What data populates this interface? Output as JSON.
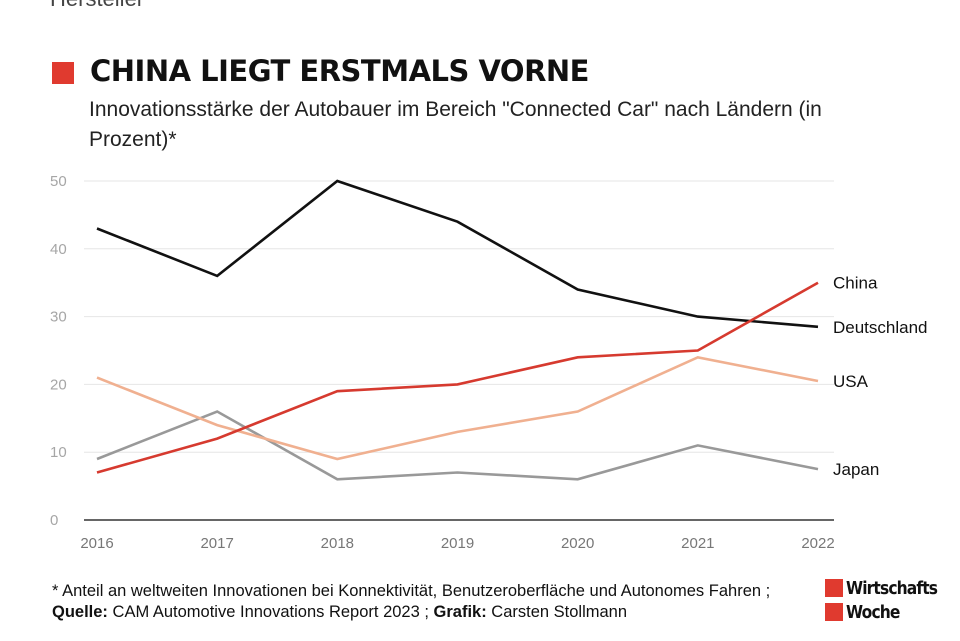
{
  "header": {
    "cropped_text": "Hersteller",
    "title": "CHINA LIEGT ERSTMALS VORNE",
    "subtitle": "Innovationsstärke der Autobauer im Bereich \"Connected Car\" nach Ländern (in Prozent)*"
  },
  "colors": {
    "accent": "#e03a2f",
    "deutschland": "#111111",
    "china": "#d63a2f",
    "usa": "#f0b090",
    "japan": "#999999",
    "grid": "#e6e6e6",
    "axis": "#333333"
  },
  "chart_data": {
    "type": "line",
    "title": "CHINA LIEGT ERSTMALS VORNE",
    "subtitle": "Innovationsstärke der Autobauer im Bereich \"Connected Car\" nach Ländern (in Prozent)*",
    "xlabel": "",
    "ylabel": "",
    "x": [
      "2016",
      "2017",
      "2018",
      "2019",
      "2020",
      "2021",
      "2022"
    ],
    "ylim": [
      0,
      50
    ],
    "yticks": [
      0,
      10,
      20,
      30,
      40,
      50
    ],
    "grid": true,
    "legend": "direct labels at line ends",
    "series": [
      {
        "name": "Deutschland",
        "values": [
          43,
          36,
          50,
          44,
          34,
          30,
          28.5
        ]
      },
      {
        "name": "China",
        "values": [
          7,
          12,
          19,
          20,
          24,
          25,
          35
        ]
      },
      {
        "name": "USA",
        "values": [
          21,
          14,
          9,
          13,
          16,
          24,
          20.5
        ]
      },
      {
        "name": "Japan",
        "values": [
          9,
          16,
          6,
          7,
          6,
          11,
          7.5
        ]
      }
    ]
  },
  "footnote": {
    "note": "* Anteil an weltweiten Innovationen bei Konnektivität, Benutzeroberfläche und Autonomes Fahren ; ",
    "source_label": "Quelle:",
    "source": " CAM Automotive Innovations Report 2023 ; ",
    "graphic_label": "Grafik:",
    "graphic": " Carsten Stollmann"
  },
  "logo": {
    "line1": "Wirtschafts",
    "line2": "Woche"
  }
}
